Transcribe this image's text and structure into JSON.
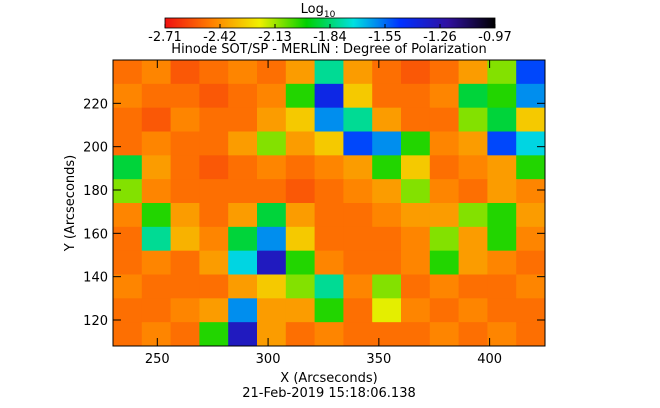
{
  "chart_data": {
    "type": "heatmap",
    "title": "Hinode SOT/SP - MERLIN : Degree of Polarization",
    "xlabel": "X (Arcseconds)",
    "ylabel": "Y (Arcseconds)",
    "date": "21-Feb-2019 15:18:06.138",
    "colorbar_label": "Log",
    "colorbar_label_sub": "10",
    "colorbar_lim": [
      -2.71,
      -0.97
    ],
    "colorbar_ticks": [
      -2.71,
      -2.42,
      -2.13,
      -1.84,
      -1.55,
      -1.26,
      -0.97
    ],
    "colormap": [
      "#f01010",
      "#ff8000",
      "#f0f000",
      "#00d000",
      "#00e0e0",
      "#0030ff",
      "#3010a0",
      "#000000"
    ],
    "xlim": [
      230,
      425
    ],
    "ylim": [
      108,
      240
    ],
    "xticks": [
      250,
      300,
      350,
      400
    ],
    "yticks": [
      120,
      140,
      160,
      180,
      200,
      220
    ],
    "x": [
      236.5,
      249.5,
      262.5,
      275.5,
      288.5,
      301.5,
      314.5,
      327.5,
      340.5,
      353.5,
      366.5,
      379.5,
      392.5,
      405.5,
      418.5
    ],
    "y": [
      234.5,
      223.5,
      212.5,
      201.5,
      190.5,
      179.5,
      168.5,
      157.5,
      146.5,
      135.5,
      124.5,
      113.5
    ],
    "z": [
      [
        -2.5,
        -2.45,
        -2.55,
        -2.5,
        -2.45,
        -2.5,
        -2.4,
        -1.8,
        -2.4,
        -2.5,
        -2.55,
        -2.5,
        -2.4,
        -2.1,
        -1.5
      ],
      [
        -2.45,
        -2.5,
        -2.5,
        -2.55,
        -2.5,
        -2.45,
        -2.0,
        -1.4,
        -2.3,
        -2.5,
        -2.5,
        -2.45,
        -1.9,
        -2.0,
        -1.6
      ],
      [
        -2.5,
        -2.55,
        -2.45,
        -2.5,
        -2.5,
        -2.4,
        -2.3,
        -1.6,
        -1.8,
        -2.4,
        -2.5,
        -2.5,
        -2.1,
        -1.9,
        -2.3
      ],
      [
        -2.5,
        -2.45,
        -2.5,
        -2.5,
        -2.4,
        -2.1,
        -2.4,
        -2.3,
        -1.5,
        -1.6,
        -2.0,
        -2.45,
        -2.4,
        -1.5,
        -1.7
      ],
      [
        -1.9,
        -2.4,
        -2.5,
        -2.55,
        -2.5,
        -2.45,
        -2.5,
        -2.45,
        -2.4,
        -2.0,
        -2.3,
        -2.5,
        -2.45,
        -2.4,
        -2.0
      ],
      [
        -2.1,
        -2.45,
        -2.5,
        -2.5,
        -2.5,
        -2.5,
        -2.55,
        -2.5,
        -2.45,
        -2.4,
        -2.1,
        -2.45,
        -2.5,
        -2.4,
        -2.45
      ],
      [
        -2.45,
        -2.0,
        -2.4,
        -2.5,
        -2.4,
        -1.9,
        -2.4,
        -2.5,
        -2.5,
        -2.45,
        -2.4,
        -2.4,
        -2.1,
        -2.0,
        -2.4
      ],
      [
        -2.5,
        -1.8,
        -2.35,
        -2.45,
        -1.9,
        -1.6,
        -2.3,
        -2.5,
        -2.5,
        -2.5,
        -2.45,
        -2.1,
        -2.4,
        -2.0,
        -2.45
      ],
      [
        -2.5,
        -2.45,
        -2.5,
        -2.4,
        -1.7,
        -1.3,
        -2.0,
        -2.45,
        -2.5,
        -2.5,
        -2.45,
        -2.0,
        -2.4,
        -2.45,
        -2.5
      ],
      [
        -2.45,
        -2.5,
        -2.5,
        -2.5,
        -2.4,
        -2.3,
        -2.1,
        -1.8,
        -2.45,
        -2.1,
        -2.5,
        -2.45,
        -2.5,
        -2.5,
        -2.45
      ],
      [
        -2.5,
        -2.5,
        -2.45,
        -2.4,
        -1.6,
        -2.4,
        -2.4,
        -2.0,
        -2.5,
        -2.2,
        -2.45,
        -2.5,
        -2.45,
        -2.5,
        -2.5
      ],
      [
        -2.5,
        -2.45,
        -2.5,
        -2.0,
        -1.3,
        -2.4,
        -2.5,
        -2.45,
        -2.5,
        -2.5,
        -2.5,
        -2.45,
        -2.5,
        -2.45,
        -2.5
      ]
    ]
  }
}
